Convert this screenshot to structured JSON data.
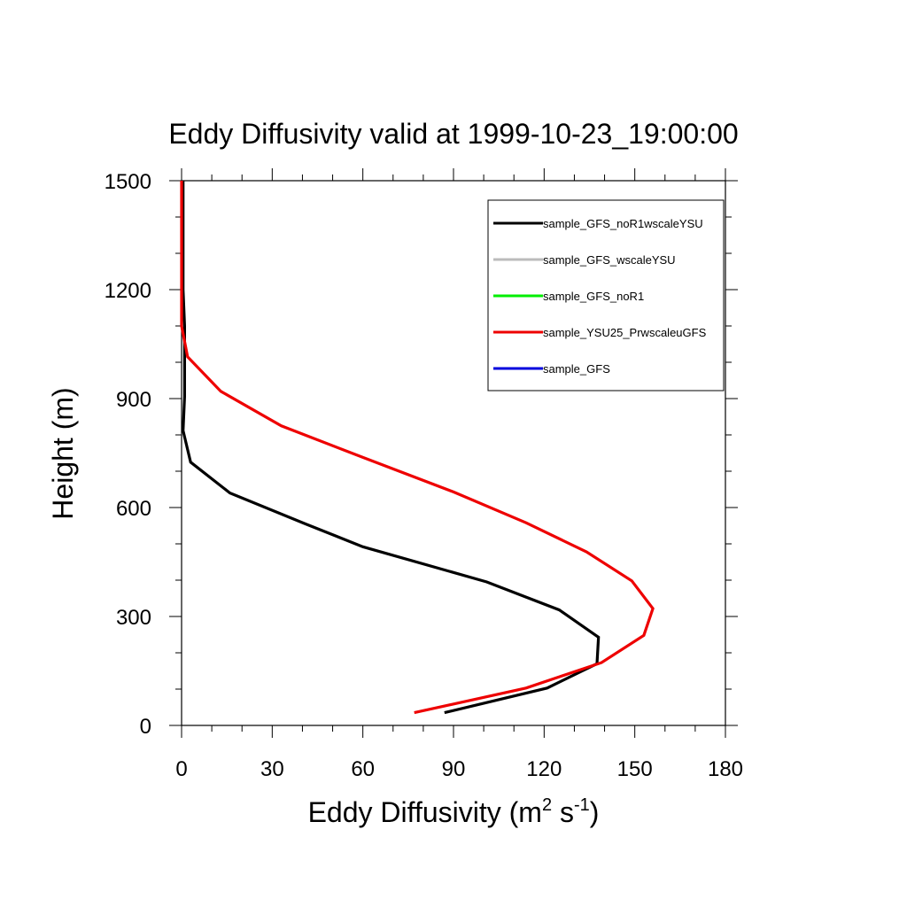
{
  "chart_data": {
    "type": "line",
    "title": "Eddy Diffusivity valid at 1999-10-23_19:00:00",
    "xlabel": {
      "prefix": "Eddy Diffusivity (m",
      "sup1": "2",
      "middle": " s",
      "sup2": "-1",
      "suffix": ")"
    },
    "ylabel": "Height (m)",
    "xlim": [
      0,
      180
    ],
    "ylim": [
      0,
      1500
    ],
    "xticks": [
      "0",
      "30",
      "60",
      "90",
      "120",
      "150",
      "180"
    ],
    "yticks": [
      "0",
      "300",
      "600",
      "900",
      "1200",
      "1500"
    ],
    "xtick_values": [
      0,
      30,
      60,
      90,
      120,
      150,
      180
    ],
    "ytick_values": [
      0,
      300,
      600,
      900,
      1200,
      1500
    ],
    "legend_position": "top-right",
    "grid": false,
    "series": [
      {
        "name": "sample_GFS_noR1wscaleYSU",
        "color": "#000000",
        "points": [
          [
            87,
            35
          ],
          [
            121,
            103
          ],
          [
            137.5,
            170
          ],
          [
            138,
            243
          ],
          [
            125,
            318
          ],
          [
            101,
            395
          ],
          [
            60,
            492
          ],
          [
            41,
            555
          ],
          [
            16,
            640
          ],
          [
            3,
            725
          ],
          [
            0.5,
            812
          ],
          [
            1,
            905
          ],
          [
            1,
            1000
          ],
          [
            1,
            1100
          ],
          [
            0.5,
            1200
          ],
          [
            0.5,
            1300
          ],
          [
            0.5,
            1400
          ],
          [
            0.5,
            1500
          ]
        ]
      },
      {
        "name": "sample_GFS_wscaleYSU",
        "color": "#bbbbbb",
        "points": []
      },
      {
        "name": "sample_GFS_noR1",
        "color": "#00ee00",
        "points": []
      },
      {
        "name": "sample_YSU25_PrwscaleuGFS",
        "color": "#ee0000",
        "points": [
          [
            77,
            35
          ],
          [
            114,
            103
          ],
          [
            139,
            173
          ],
          [
            153,
            248
          ],
          [
            156,
            322
          ],
          [
            149,
            398
          ],
          [
            134,
            478
          ],
          [
            114,
            558
          ],
          [
            90,
            643
          ],
          [
            60,
            738
          ],
          [
            33,
            825
          ],
          [
            13,
            920
          ],
          [
            2,
            1015
          ],
          [
            0,
            1100
          ],
          [
            0,
            1200
          ],
          [
            0,
            1300
          ],
          [
            0,
            1400
          ],
          [
            0,
            1500
          ]
        ]
      },
      {
        "name": "sample_GFS",
        "color": "#0000dd",
        "points": []
      }
    ]
  }
}
